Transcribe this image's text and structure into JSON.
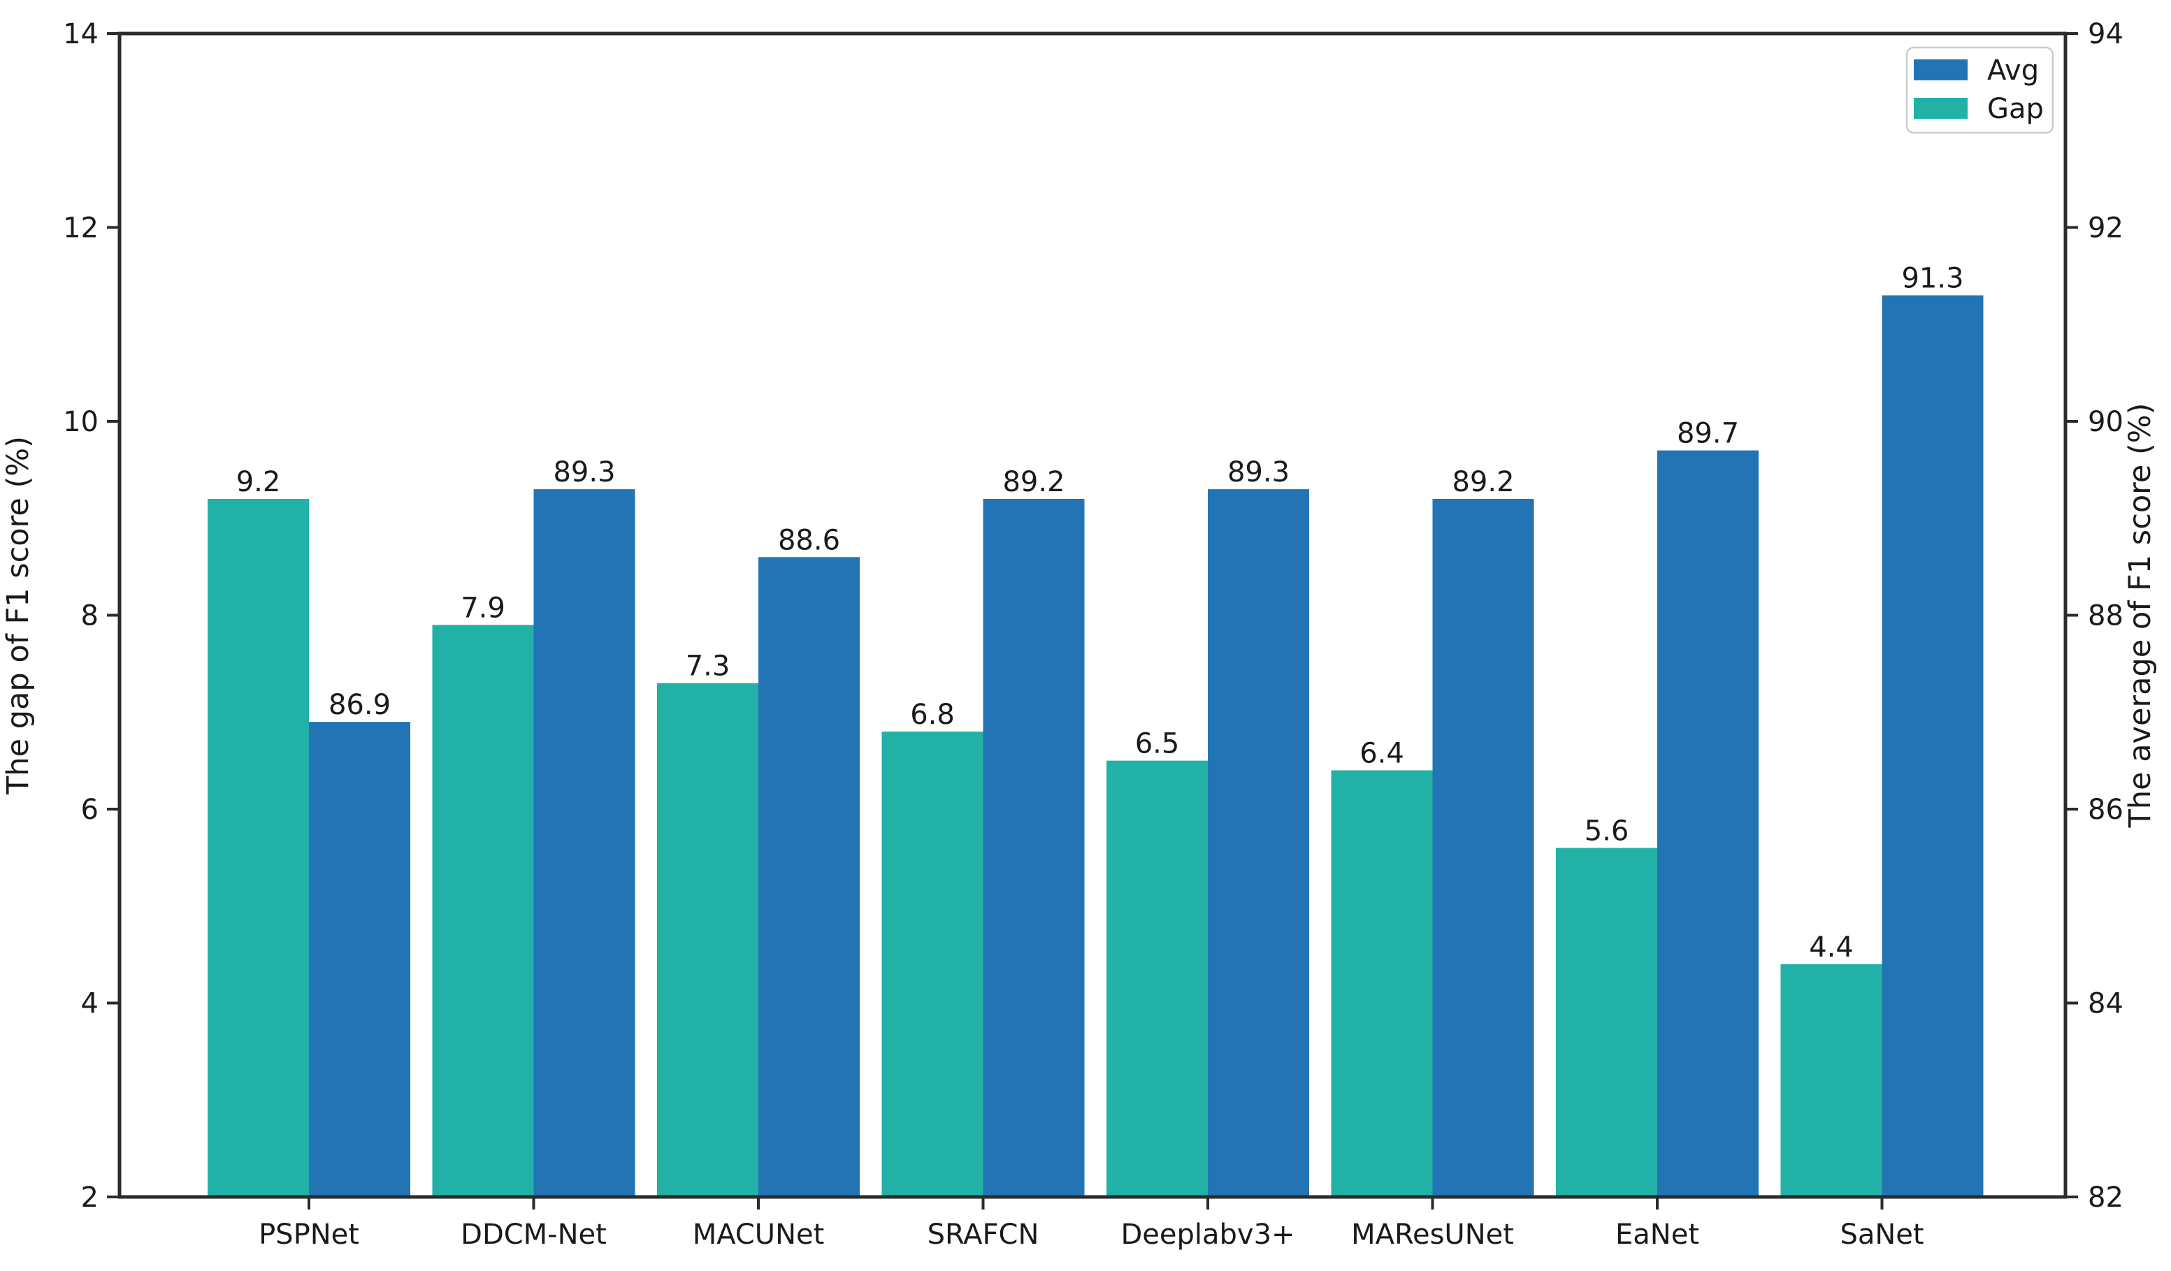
{
  "figure": {
    "background": "#ffffff",
    "text_color": "#1a1a1a",
    "spine_color": "#2b2b2b"
  },
  "chart_data": {
    "type": "bar",
    "categories": [
      "PSPNet",
      "DDCM-Net",
      "MACUNet",
      "SRAFCN",
      "Deeplabv3+",
      "MAResUNet",
      "EaNet",
      "SaNet"
    ],
    "series": [
      {
        "name": "Avg",
        "axis": "right",
        "color": "#2274b5",
        "values": [
          86.9,
          89.3,
          88.6,
          89.2,
          89.3,
          89.2,
          89.7,
          91.3
        ],
        "data_labels": [
          "86.9",
          "89.3",
          "88.6",
          "89.2",
          "89.3",
          "89.2",
          "89.7",
          "91.3"
        ]
      },
      {
        "name": "Gap",
        "axis": "left",
        "color": "#21b1a7",
        "values": [
          9.2,
          7.9,
          7.3,
          6.8,
          6.5,
          6.4,
          5.6,
          4.4
        ],
        "data_labels": [
          "9.2",
          "7.9",
          "7.3",
          "6.8",
          "6.5",
          "6.4",
          "5.6",
          "4.4"
        ]
      }
    ],
    "bar_group_order": [
      "Gap",
      "Avg"
    ],
    "left_axis": {
      "label": "The gap of F1 score (%)",
      "min": 2,
      "max": 14,
      "tick_labels": [
        "2",
        "4",
        "6",
        "8",
        "10",
        "12",
        "14"
      ]
    },
    "right_axis": {
      "label": "The average of F1 score (%)",
      "min": 82,
      "max": 94,
      "tick_labels": [
        "82",
        "84",
        "86",
        "88",
        "90",
        "92",
        "94"
      ]
    },
    "x_axis": {
      "tick_labels": [
        "PSPNet",
        "DDCM-Net",
        "MACUNet",
        "SRAFCN",
        "Deeplabv3+",
        "MAResUNet",
        "EaNet",
        "SaNet"
      ]
    },
    "legend": {
      "position": "upper right",
      "border_color": "#cccccc",
      "background": "#ffffff",
      "entries": [
        {
          "label": "Avg",
          "color": "#2274b5"
        },
        {
          "label": "Gap",
          "color": "#21b1a7"
        }
      ]
    },
    "grid": false,
    "value_labels_shown": true
  }
}
